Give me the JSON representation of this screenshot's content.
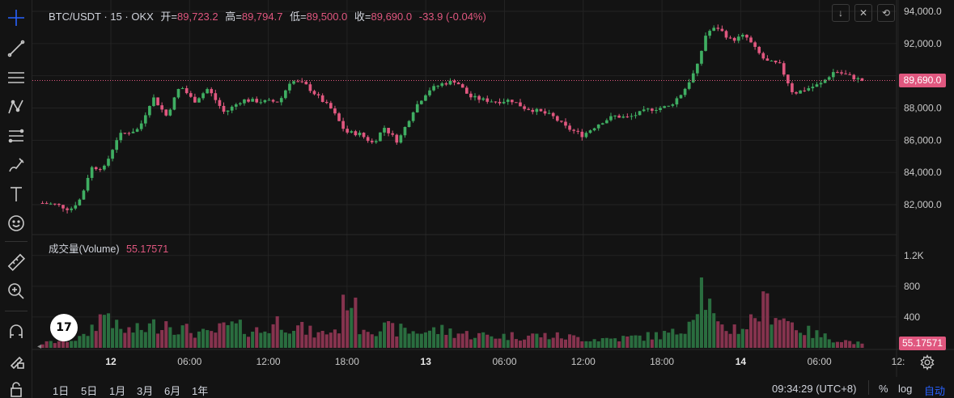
{
  "legend": {
    "symbol": "BTC/USDT · 15 · OKX",
    "open_label": "开=",
    "open": "89,723.2",
    "high_label": "高=",
    "high": "89,794.7",
    "low_label": "低=",
    "low": "89,500.0",
    "close_label": "收=",
    "close": "89,690.0",
    "change": "-33.9 (-0.04%)"
  },
  "volume_legend": {
    "label": "成交量(Volume)",
    "value": "55.17571"
  },
  "price_axis": {
    "ticks": [
      "94,000.0",
      "92,000.0",
      "88,000.0",
      "86,000.0",
      "84,000.0",
      "82,000.0"
    ],
    "current_price": "89,690.0"
  },
  "volume_axis": {
    "ticks": [
      "1.2K",
      "800",
      "400"
    ],
    "current_volume": "55.17571"
  },
  "time_axis": {
    "ticks": [
      "12",
      "06:00",
      "12:00",
      "18:00",
      "13",
      "06:00",
      "12:00",
      "18:00",
      "14",
      "06:00",
      "12:"
    ]
  },
  "ranges": [
    "1日",
    "5日",
    "1月",
    "3月",
    "6月",
    "1年"
  ],
  "bottom_bar": {
    "time": "09:34:29 (UTC+8)",
    "percent": "%",
    "log": "log",
    "auto": "自动"
  },
  "logo_text": "17",
  "colors": {
    "up": "#3fae62",
    "down": "#e0577f",
    "background": "#131313",
    "grid": "#232323",
    "accent": "#2962ff"
  },
  "chart_data": {
    "type": "candlestick",
    "title": "BTC/USDT · 15 · OKX",
    "ylim": [
      81000,
      94500
    ],
    "close_path": [
      [
        0,
        82100
      ],
      [
        10,
        82000
      ],
      [
        20,
        81700
      ],
      [
        28,
        82400
      ],
      [
        35,
        84300
      ],
      [
        45,
        84300
      ],
      [
        55,
        86300
      ],
      [
        70,
        86700
      ],
      [
        80,
        88700
      ],
      [
        90,
        87500
      ],
      [
        100,
        89400
      ],
      [
        110,
        88400
      ],
      [
        120,
        89200
      ],
      [
        132,
        87700
      ],
      [
        145,
        88500
      ],
      [
        160,
        88400
      ],
      [
        172,
        88400
      ],
      [
        180,
        89700
      ],
      [
        190,
        89500
      ],
      [
        200,
        88700
      ],
      [
        210,
        87900
      ],
      [
        220,
        86500
      ],
      [
        230,
        86400
      ],
      [
        240,
        85800
      ],
      [
        248,
        86800
      ],
      [
        258,
        85900
      ],
      [
        270,
        88000
      ],
      [
        280,
        89100
      ],
      [
        290,
        89500
      ],
      [
        300,
        89700
      ],
      [
        310,
        88700
      ],
      [
        320,
        88500
      ],
      [
        330,
        88400
      ],
      [
        340,
        88500
      ],
      [
        350,
        88000
      ],
      [
        360,
        87800
      ],
      [
        370,
        87500
      ],
      [
        380,
        86800
      ],
      [
        392,
        86300
      ],
      [
        405,
        87100
      ],
      [
        415,
        87500
      ],
      [
        425,
        87400
      ],
      [
        440,
        87900
      ],
      [
        455,
        88100
      ],
      [
        465,
        89000
      ],
      [
        475,
        90500
      ],
      [
        482,
        92700
      ],
      [
        490,
        93000
      ],
      [
        500,
        92200
      ],
      [
        510,
        92500
      ],
      [
        518,
        91600
      ],
      [
        525,
        90900
      ],
      [
        535,
        90700
      ],
      [
        545,
        88900
      ],
      [
        555,
        89200
      ],
      [
        565,
        89500
      ],
      [
        575,
        90300
      ],
      [
        585,
        90000
      ],
      [
        595,
        89690
      ]
    ],
    "volume_profile": [
      [
        0,
        60
      ],
      [
        30,
        140
      ],
      [
        40,
        380
      ],
      [
        48,
        500
      ],
      [
        55,
        230
      ],
      [
        70,
        240
      ],
      [
        80,
        300
      ],
      [
        90,
        370
      ],
      [
        100,
        260
      ],
      [
        120,
        180
      ],
      [
        135,
        300
      ],
      [
        160,
        220
      ],
      [
        172,
        380
      ],
      [
        185,
        280
      ],
      [
        200,
        180
      ],
      [
        215,
        260
      ],
      [
        222,
        850
      ],
      [
        230,
        300
      ],
      [
        250,
        260
      ],
      [
        270,
        220
      ],
      [
        290,
        240
      ],
      [
        310,
        180
      ],
      [
        330,
        160
      ],
      [
        360,
        170
      ],
      [
        380,
        150
      ],
      [
        400,
        120
      ],
      [
        420,
        130
      ],
      [
        440,
        160
      ],
      [
        460,
        200
      ],
      [
        470,
        400
      ],
      [
        478,
        880
      ],
      [
        490,
        260
      ],
      [
        510,
        280
      ],
      [
        525,
        600
      ],
      [
        540,
        380
      ],
      [
        555,
        220
      ],
      [
        570,
        140
      ],
      [
        595,
        55
      ]
    ]
  }
}
